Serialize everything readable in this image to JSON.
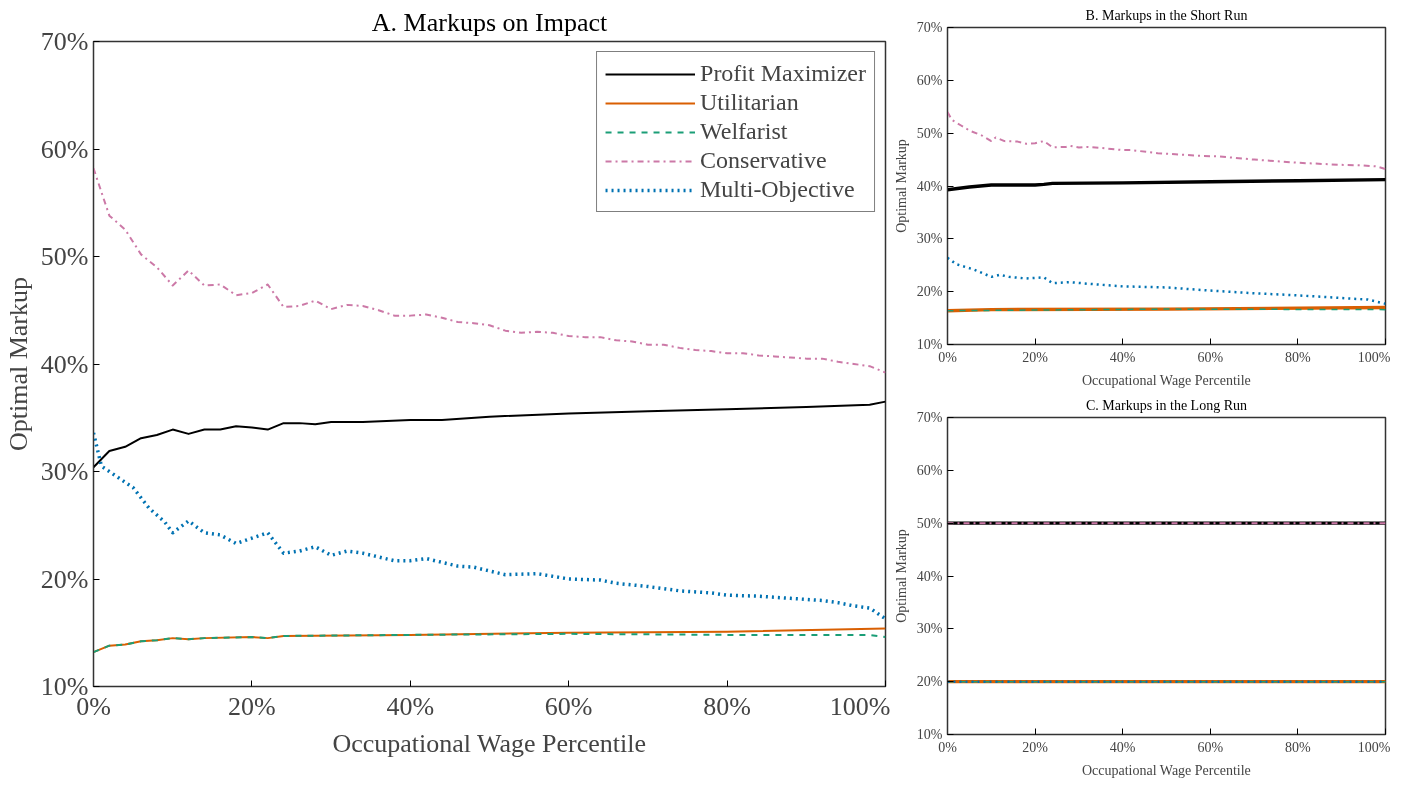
{
  "chart_data": [
    {
      "type": "line",
      "title": "A. Markups on Impact",
      "xlabel": "Occupational Wage Percentile",
      "ylabel": "Optimal Markup",
      "xlim": [
        0,
        100
      ],
      "ylim": [
        10,
        70
      ],
      "xticks": [
        {
          "value": 0,
          "label": "0%"
        },
        {
          "value": 20,
          "label": "20%"
        },
        {
          "value": 40,
          "label": "40%"
        },
        {
          "value": 60,
          "label": "60%"
        },
        {
          "value": 80,
          "label": "80%"
        },
        {
          "value": 100,
          "label": "100%"
        }
      ],
      "yticks": [
        {
          "value": 10,
          "label": "10%"
        },
        {
          "value": 20,
          "label": "20%"
        },
        {
          "value": 30,
          "label": "30%"
        },
        {
          "value": 40,
          "label": "40%"
        },
        {
          "value": 50,
          "label": "50%"
        },
        {
          "value": 60,
          "label": "60%"
        },
        {
          "value": 70,
          "label": "70%"
        }
      ],
      "grid": false,
      "legend": "top right",
      "series": [
        {
          "name": "Profit Maximizer",
          "color": "#000000",
          "line_style": "solid",
          "x": [
            0,
            2,
            4,
            6,
            8,
            10,
            12,
            14,
            16,
            18,
            20,
            22,
            24,
            26,
            28,
            30,
            34,
            40,
            44,
            50,
            60,
            70,
            80,
            90,
            98,
            100
          ],
          "values": [
            30.4,
            31.9,
            32.3,
            33.1,
            33.4,
            33.9,
            33.5,
            33.9,
            33.9,
            34.2,
            34.1,
            33.9,
            34.5,
            34.5,
            34.4,
            34.6,
            34.6,
            34.8,
            34.8,
            35.1,
            35.4,
            35.6,
            35.8,
            36,
            36.2,
            36.5
          ]
        },
        {
          "name": "Utilitarian",
          "color": "#d95f02",
          "line_style": "solid",
          "x": [
            0,
            2,
            4,
            6,
            8,
            10,
            12,
            14,
            20,
            22,
            24,
            40,
            60,
            80,
            100
          ],
          "values": [
            13.2,
            13.8,
            13.9,
            14.2,
            14.3,
            14.5,
            14.4,
            14.5,
            14.6,
            14.5,
            14.7,
            14.8,
            15,
            15.1,
            15.4
          ]
        },
        {
          "name": "Welfarist",
          "color": "#1b9e77",
          "line_style": "dashed",
          "x": [
            0,
            2,
            4,
            6,
            8,
            10,
            12,
            14,
            20,
            22,
            24,
            40,
            60,
            80,
            98,
            100
          ],
          "values": [
            13.2,
            13.8,
            13.9,
            14.2,
            14.3,
            14.5,
            14.4,
            14.5,
            14.6,
            14.5,
            14.7,
            14.8,
            14.9,
            14.8,
            14.8,
            14.6
          ]
        },
        {
          "name": "Conservative",
          "color": "#cc79a7",
          "line_style": "dashdot",
          "x": [
            0,
            2,
            4,
            6,
            8,
            10,
            12,
            14,
            16,
            18,
            20,
            22,
            24,
            26,
            28,
            30,
            32,
            34,
            36,
            38,
            40,
            42,
            44,
            46,
            48,
            50,
            52,
            54,
            56,
            58,
            60,
            62,
            64,
            66,
            68,
            70,
            72,
            74,
            76,
            78,
            80,
            82,
            84,
            86,
            88,
            90,
            92,
            94,
            96,
            98,
            100
          ],
          "values": [
            58.2,
            53.8,
            52.5,
            50.2,
            49,
            47.3,
            48.7,
            47.3,
            47.4,
            46.4,
            46.6,
            47.4,
            45.3,
            45.4,
            45.9,
            45.1,
            45.5,
            45.4,
            45,
            44.5,
            44.5,
            44.6,
            44.3,
            43.9,
            43.8,
            43.6,
            43.1,
            42.9,
            43,
            42.9,
            42.6,
            42.5,
            42.5,
            42.2,
            42.1,
            41.8,
            41.8,
            41.5,
            41.3,
            41.2,
            41,
            41,
            40.8,
            40.7,
            40.6,
            40.5,
            40.5,
            40.2,
            40,
            39.8,
            39.2
          ]
        },
        {
          "name": "Multi-Objective",
          "color": "#0072b2",
          "line_style": "dotted",
          "x": [
            0,
            1,
            3,
            5,
            7,
            9,
            10,
            12,
            14,
            16,
            18,
            20,
            22,
            24,
            26,
            28,
            30,
            32,
            34,
            38,
            40,
            42,
            46,
            48,
            52,
            56,
            60,
            64,
            66,
            70,
            74,
            78,
            80,
            84,
            88,
            92,
            94,
            96,
            98,
            100
          ],
          "values": [
            33.6,
            30.5,
            29.5,
            28.5,
            26.6,
            25.3,
            24.3,
            25.4,
            24.3,
            24.1,
            23.3,
            23.8,
            24.3,
            22.4,
            22.6,
            23,
            22.2,
            22.6,
            22.4,
            21.7,
            21.7,
            21.9,
            21.2,
            21.1,
            20.4,
            20.5,
            20,
            19.9,
            19.6,
            19.3,
            18.9,
            18.7,
            18.5,
            18.4,
            18.2,
            18,
            17.8,
            17.5,
            17.3,
            16.3
          ]
        }
      ]
    },
    {
      "type": "line",
      "title": "B. Markups in the Short Run",
      "xlabel": "Occupational Wage Percentile",
      "ylabel": "Optimal Markup",
      "xlim": [
        0,
        100
      ],
      "ylim": [
        10,
        70
      ],
      "xticks": [
        {
          "value": 0,
          "label": "0%"
        },
        {
          "value": 20,
          "label": "20%"
        },
        {
          "value": 40,
          "label": "40%"
        },
        {
          "value": 60,
          "label": "60%"
        },
        {
          "value": 80,
          "label": "80%"
        },
        {
          "value": 100,
          "label": "100%"
        }
      ],
      "yticks": [
        {
          "value": 10,
          "label": "10%"
        },
        {
          "value": 20,
          "label": "20%"
        },
        {
          "value": 30,
          "label": "30%"
        },
        {
          "value": 40,
          "label": "40%"
        },
        {
          "value": 50,
          "label": "50%"
        },
        {
          "value": 60,
          "label": "60%"
        },
        {
          "value": 70,
          "label": "70%"
        }
      ],
      "grid": false,
      "series": [
        {
          "color": "#000000",
          "line_style": "solid",
          "x": [
            0,
            5,
            10,
            20,
            22,
            24,
            40,
            60,
            80,
            100
          ],
          "values": [
            39.3,
            39.8,
            40.2,
            40.2,
            40.3,
            40.5,
            40.6,
            40.8,
            41,
            41.2
          ]
        },
        {
          "color": "#d95f02",
          "line_style": "solid",
          "x": [
            0,
            10,
            50,
            100
          ],
          "values": [
            16.4,
            16.6,
            16.7,
            17.0
          ]
        },
        {
          "color": "#1b9e77",
          "line_style": "dashed",
          "x": [
            0,
            50,
            100
          ],
          "values": [
            16.4,
            16.7,
            16.6
          ]
        },
        {
          "color": "#cc79a7",
          "line_style": "dashdot",
          "x": [
            0,
            1,
            3,
            5,
            8,
            10,
            11,
            13,
            16,
            18,
            20,
            22,
            24,
            27,
            28,
            30,
            32,
            35,
            40,
            42,
            48,
            52,
            58,
            62,
            70,
            80,
            90,
            95,
            98,
            100
          ],
          "values": [
            54,
            52.5,
            51.5,
            50.5,
            49.5,
            48.5,
            49.2,
            48.5,
            48.4,
            48,
            48.1,
            48.5,
            47.3,
            47.4,
            47.6,
            47.3,
            47.4,
            47.2,
            46.8,
            46.8,
            46.2,
            46,
            45.7,
            45.6,
            45,
            44.4,
            44,
            43.9,
            43.7,
            43.2
          ]
        },
        {
          "color": "#0072b2",
          "line_style": "dotted",
          "x": [
            0,
            2,
            6,
            10,
            12,
            14,
            18,
            22,
            24,
            28,
            32,
            40,
            50,
            60,
            70,
            80,
            90,
            96,
            100
          ],
          "values": [
            26.4,
            25.2,
            24.2,
            22.8,
            23.2,
            22.8,
            22.5,
            22.7,
            21.6,
            21.8,
            21.5,
            21,
            20.8,
            20.2,
            19.7,
            19.3,
            18.8,
            18.5,
            17.7
          ]
        }
      ]
    },
    {
      "type": "line",
      "title": "C. Markups in the Long Run",
      "xlabel": "Occupational Wage Percentile",
      "ylabel": "Optimal Markup",
      "xlim": [
        0,
        100
      ],
      "ylim": [
        10,
        70
      ],
      "xticks": [
        {
          "value": 0,
          "label": "0%"
        },
        {
          "value": 20,
          "label": "20%"
        },
        {
          "value": 40,
          "label": "40%"
        },
        {
          "value": 60,
          "label": "60%"
        },
        {
          "value": 80,
          "label": "80%"
        },
        {
          "value": 100,
          "label": "100%"
        }
      ],
      "yticks": [
        {
          "value": 10,
          "label": "10%"
        },
        {
          "value": 20,
          "label": "20%"
        },
        {
          "value": 30,
          "label": "30%"
        },
        {
          "value": 40,
          "label": "40%"
        },
        {
          "value": 50,
          "label": "50%"
        },
        {
          "value": 60,
          "label": "60%"
        },
        {
          "value": 70,
          "label": "70%"
        }
      ],
      "grid": false,
      "series": [
        {
          "color": "#000000",
          "line_style": "solid",
          "x": [
            0,
            100
          ],
          "values": [
            50,
            50
          ]
        },
        {
          "color": "#d95f02",
          "line_style": "solid",
          "x": [
            0,
            100
          ],
          "values": [
            20,
            20
          ]
        },
        {
          "color": "#1b9e77",
          "line_style": "dashed",
          "x": [
            0,
            100
          ],
          "values": [
            20,
            20
          ]
        },
        {
          "color": "#cc79a7",
          "line_style": "dashdot",
          "x": [
            0,
            100
          ],
          "values": [
            50,
            50
          ]
        },
        {
          "color": "#0072b2",
          "line_style": "dotted",
          "x": [
            0,
            100
          ],
          "values": [
            20,
            20
          ]
        }
      ]
    }
  ]
}
